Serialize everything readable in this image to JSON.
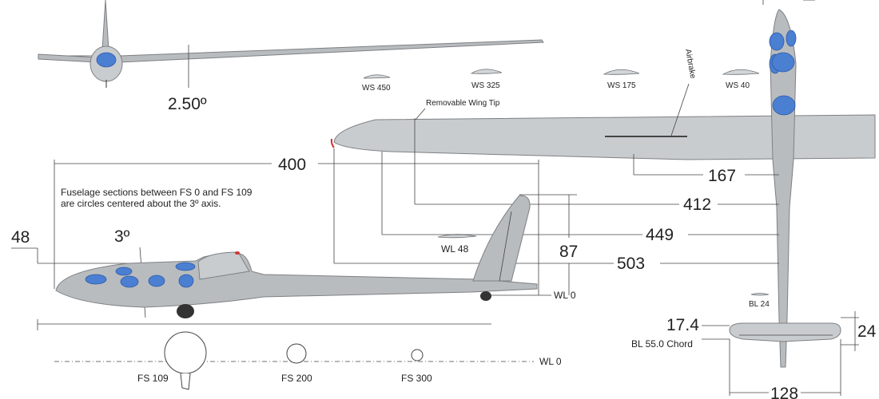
{
  "top_left": {
    "dihedral": "2.50º"
  },
  "airfoil_stations": {
    "ws450": "WS 450",
    "ws325": "WS 325",
    "ws175": "WS 175",
    "ws40": "WS 40",
    "wl48": "WL 48",
    "bl24": "BL 24"
  },
  "plan_view": {
    "removable_wing_tip": "Removable Wing Tip",
    "airbrake": "Airbrake",
    "dim_167": "167",
    "dim_412": "412",
    "dim_449": "449",
    "dim_503": "503"
  },
  "side_view": {
    "dim_400": "400",
    "note_line1": "Fuselage sections between FS 0 and FS 109",
    "note_line2": "are circles centered about the 3º axis.",
    "dim_48": "48",
    "angle": "3º",
    "dim_87": "87",
    "wl0": "WL 0"
  },
  "sections": {
    "fs109": "FS 109",
    "fs200": "FS 200",
    "fs300": "FS 300",
    "wl0": "WL 0"
  },
  "tail_plan": {
    "dim_174": "17.4",
    "chord": "BL 55.0 Chord",
    "dim_24": "24",
    "dim_128": "128"
  }
}
